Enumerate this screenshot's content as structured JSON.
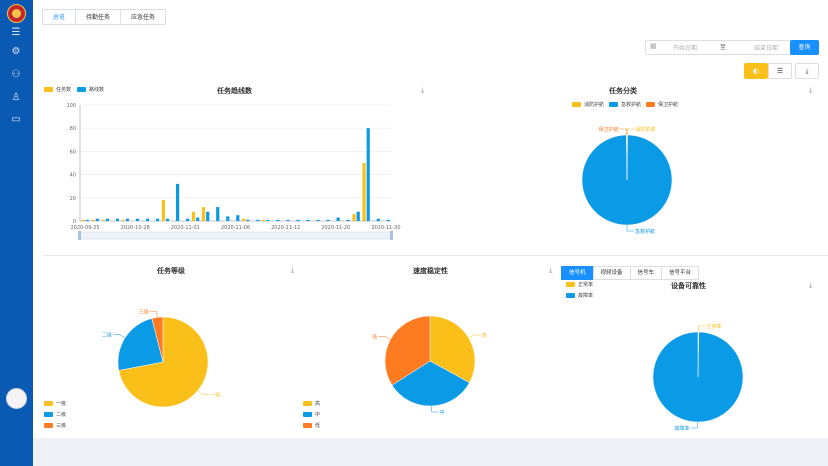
{
  "sidebar": {
    "icons": [
      "menu-icon",
      "gear-icon",
      "people-icon",
      "user-icon",
      "message-icon"
    ]
  },
  "tabs": [
    {
      "label": "总览",
      "active": true
    },
    {
      "label": "待勤任务",
      "active": false
    },
    {
      "label": "应急任务",
      "active": false
    }
  ],
  "filters": {
    "start_placeholder": "开始日期",
    "separator": "至",
    "end_placeholder": "结束日期",
    "query_label": "查询"
  },
  "toolbar": {
    "chart_view_icon": "pie-icon",
    "list_view_icon": "list-icon",
    "export_icon": "download-icon"
  },
  "charts": {
    "trend": {
      "title": "任务趋线数",
      "legend": [
        "任务数",
        "路线数"
      ]
    },
    "category": {
      "title": "任务分类",
      "legend": [
        "消防护航",
        "急救护航",
        "保卫护航"
      ]
    },
    "level": {
      "title": "任务等级",
      "legend": [
        "一级",
        "二级",
        "三级"
      ]
    },
    "speed": {
      "title": "速度稳定性",
      "legend": [
        "高",
        "中",
        "低"
      ]
    },
    "reliability": {
      "title": "设备可靠性",
      "legend": [
        "正常率",
        "故障率"
      ],
      "tabs": [
        "信号机",
        "视频设备",
        "信号车",
        "信号平台"
      ]
    }
  },
  "chart_data": [
    {
      "type": "bar",
      "title": "任务趋线数",
      "colors": [
        "#fbbf1a",
        "#0b9be6"
      ],
      "categories": [
        "2020-09-25",
        "",
        "",
        "",
        "",
        "2020-10-28",
        "",
        "",
        "",
        "",
        "2020-11-01",
        "",
        "",
        "",
        "",
        "2020-11-06",
        "",
        "",
        "",
        "",
        "2020-11-12",
        "",
        "",
        "",
        "",
        "2020-11-20",
        "",
        "",
        "",
        "",
        "2020-11-30"
      ],
      "series": [
        {
          "name": "任务数",
          "values": [
            1,
            1,
            1,
            0,
            1,
            0,
            0,
            0,
            18,
            0,
            0,
            8,
            12,
            0,
            0,
            0,
            2,
            0,
            1,
            0,
            0,
            0,
            0,
            0,
            0,
            0,
            0,
            6,
            50,
            0,
            0
          ]
        },
        {
          "name": "路线数",
          "values": [
            1,
            2,
            2,
            2,
            2,
            2,
            2,
            2,
            2,
            32,
            2,
            3,
            8,
            12,
            4,
            5,
            1,
            1,
            1,
            1,
            1,
            1,
            1,
            1,
            1,
            3,
            1,
            8,
            80,
            2,
            1
          ]
        }
      ],
      "ylim": [
        0,
        100
      ],
      "yticks": [
        0,
        20,
        40,
        60,
        80,
        100
      ],
      "xticks": [
        "2020-09-25",
        "2020-10-28",
        "2020-11-01",
        "2020-11-06",
        "2020-11-12",
        "2020-11-20",
        "2020-11-30"
      ]
    },
    {
      "type": "pie",
      "title": "任务分类",
      "colors": [
        "#fbbf1a",
        "#0b9be6",
        "#ff7b22"
      ],
      "labels": [
        "消防护航",
        "急救护航",
        "保卫护航"
      ],
      "values": [
        0.2,
        100,
        0.2
      ]
    },
    {
      "type": "pie",
      "title": "任务等级",
      "colors": [
        "#fbbf1a",
        "#0b9be6",
        "#ff7b22"
      ],
      "labels": [
        "一级",
        "二级",
        "三级"
      ],
      "values": [
        72,
        24,
        4
      ]
    },
    {
      "type": "pie",
      "title": "速度稳定性",
      "colors": [
        "#fbbf1a",
        "#0b9be6",
        "#ff7b22"
      ],
      "labels": [
        "高",
        "中",
        "低"
      ],
      "values": [
        33,
        33,
        34
      ]
    },
    {
      "type": "pie",
      "title": "设备可靠性",
      "colors": [
        "#fbbf1a",
        "#0b9be6"
      ],
      "labels": [
        "正常率",
        "故障率"
      ],
      "values": [
        0.3,
        100
      ]
    }
  ]
}
